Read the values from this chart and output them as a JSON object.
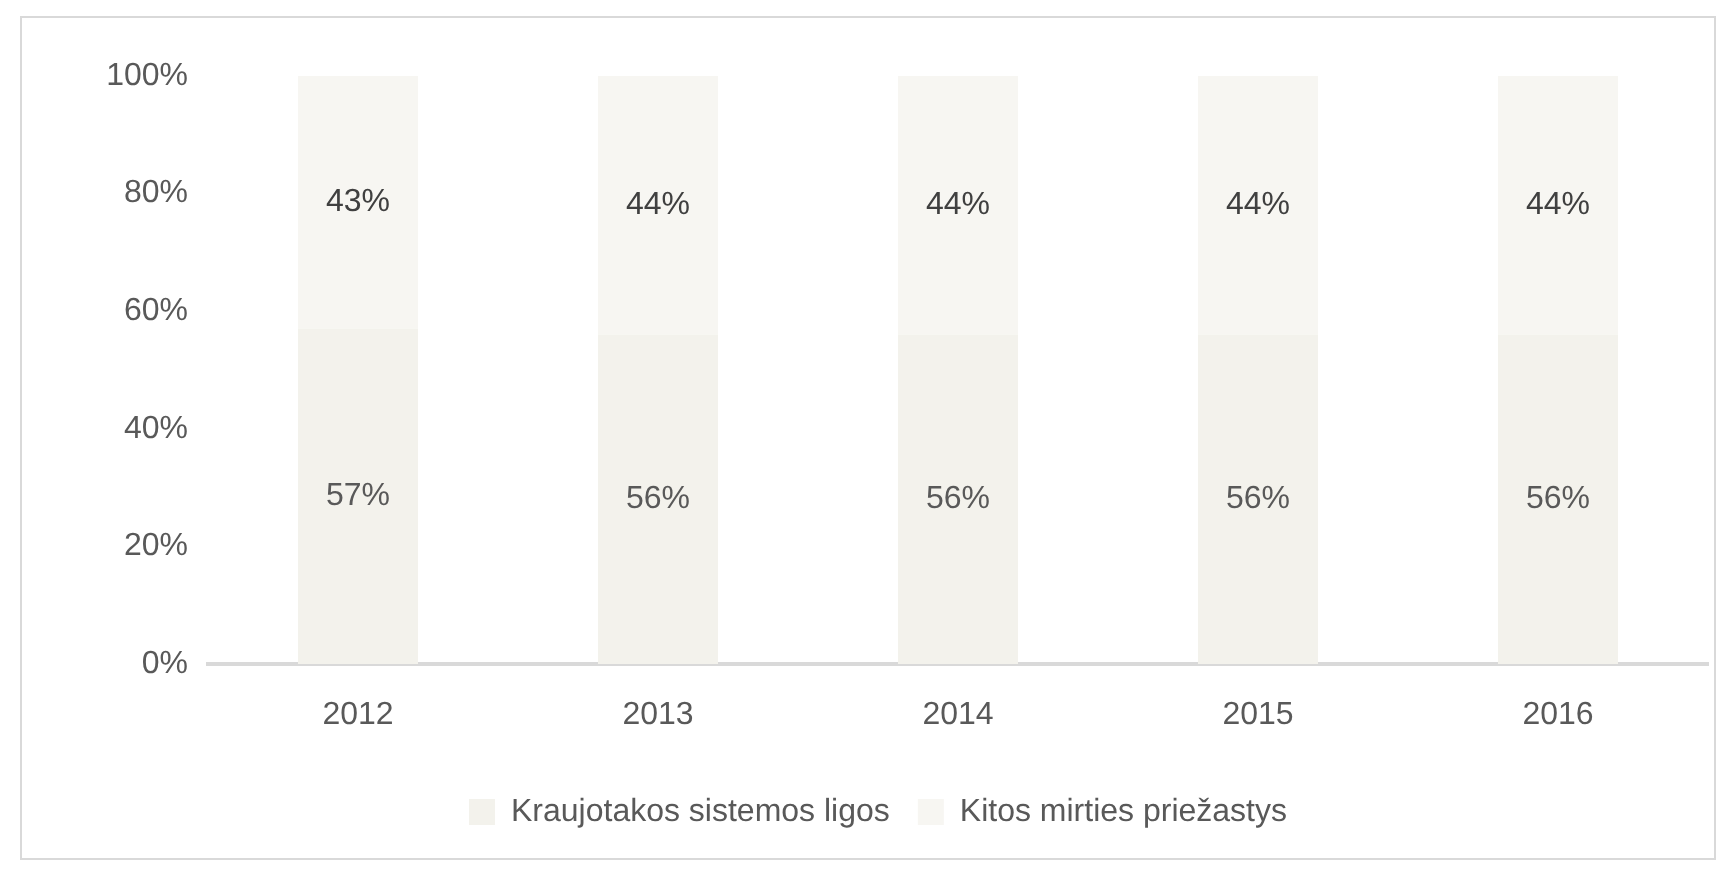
{
  "chart_data": {
    "type": "bar",
    "stacked": true,
    "categories": [
      "2012",
      "2013",
      "2014",
      "2015",
      "2016"
    ],
    "series": [
      {
        "name": "Kraujotakos sistemos ligos",
        "color": "#f3f2ec",
        "values": [
          57,
          56,
          56,
          56,
          56
        ],
        "value_labels": [
          "57%",
          "56%",
          "56%",
          "56%",
          "56%"
        ]
      },
      {
        "name": "Kitos mirties priežastys",
        "color": "#f7f6f2",
        "values": [
          43,
          44,
          44,
          44,
          44
        ],
        "value_labels": [
          "43%",
          "44%",
          "44%",
          "44%",
          "44%"
        ]
      }
    ],
    "ylim": [
      0,
      100
    ],
    "yticks": [
      {
        "value": 0,
        "label": "0%"
      },
      {
        "value": 20,
        "label": "20%"
      },
      {
        "value": 40,
        "label": "40%"
      },
      {
        "value": 60,
        "label": "60%"
      },
      {
        "value": 80,
        "label": "80%"
      },
      {
        "value": 100,
        "label": "100%"
      }
    ],
    "grid": false,
    "legend": "bottom"
  }
}
